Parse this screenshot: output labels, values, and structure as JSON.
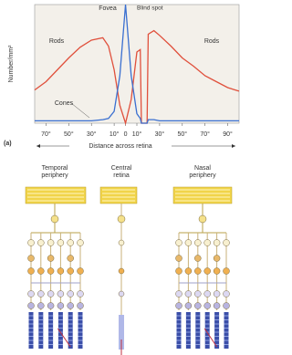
{
  "chart_data": {
    "type": "line",
    "y_label": "Number/mm²",
    "x_label": "Distance across retina",
    "panel_label": "(a)",
    "annotations": [
      "Rods",
      "Rods",
      "Fovea",
      "Blind spot",
      "Cones"
    ],
    "x": [
      -80,
      -70,
      -60,
      -50,
      -40,
      -30,
      -20,
      -15,
      -10,
      -5,
      0,
      5,
      10,
      13,
      14,
      19,
      20,
      25,
      30,
      40,
      50,
      60,
      70,
      80,
      90,
      100
    ],
    "series": [
      {
        "name": "Rods",
        "color": "#e0503c",
        "values": [
          28,
          35,
          45,
          55,
          64,
          70,
          72,
          65,
          45,
          15,
          0,
          20,
          60,
          62,
          0,
          0,
          75,
          78,
          74,
          65,
          55,
          48,
          40,
          35,
          30,
          27
        ]
      },
      {
        "name": "Cones",
        "color": "#3a6fd0",
        "values": [
          2,
          2,
          2,
          2,
          2,
          2,
          3,
          4,
          10,
          40,
          100,
          40,
          8,
          4,
          0,
          0,
          3,
          3,
          2,
          2,
          2,
          2,
          2,
          2,
          2,
          2
        ]
      }
    ],
    "xlim": [
      -80,
      100
    ],
    "ylim": [
      0,
      100
    ],
    "xticks": [
      {
        "value": -70,
        "label": "70°"
      },
      {
        "value": -50,
        "label": "50°"
      },
      {
        "value": -30,
        "label": "30°"
      },
      {
        "value": -10,
        "label": "10°"
      },
      0,
      {
        "value": 10,
        "label": "10°"
      },
      {
        "value": 30,
        "label": "30°"
      },
      {
        "value": 50,
        "label": "50°"
      },
      {
        "value": 70,
        "label": "70°"
      },
      {
        "value": 90,
        "label": "90°"
      }
    ]
  },
  "diagram": {
    "columns": [
      [
        "Temporal",
        "periphery"
      ],
      [
        "Central",
        "retina"
      ],
      [
        "Nasal",
        "periphery"
      ]
    ]
  }
}
